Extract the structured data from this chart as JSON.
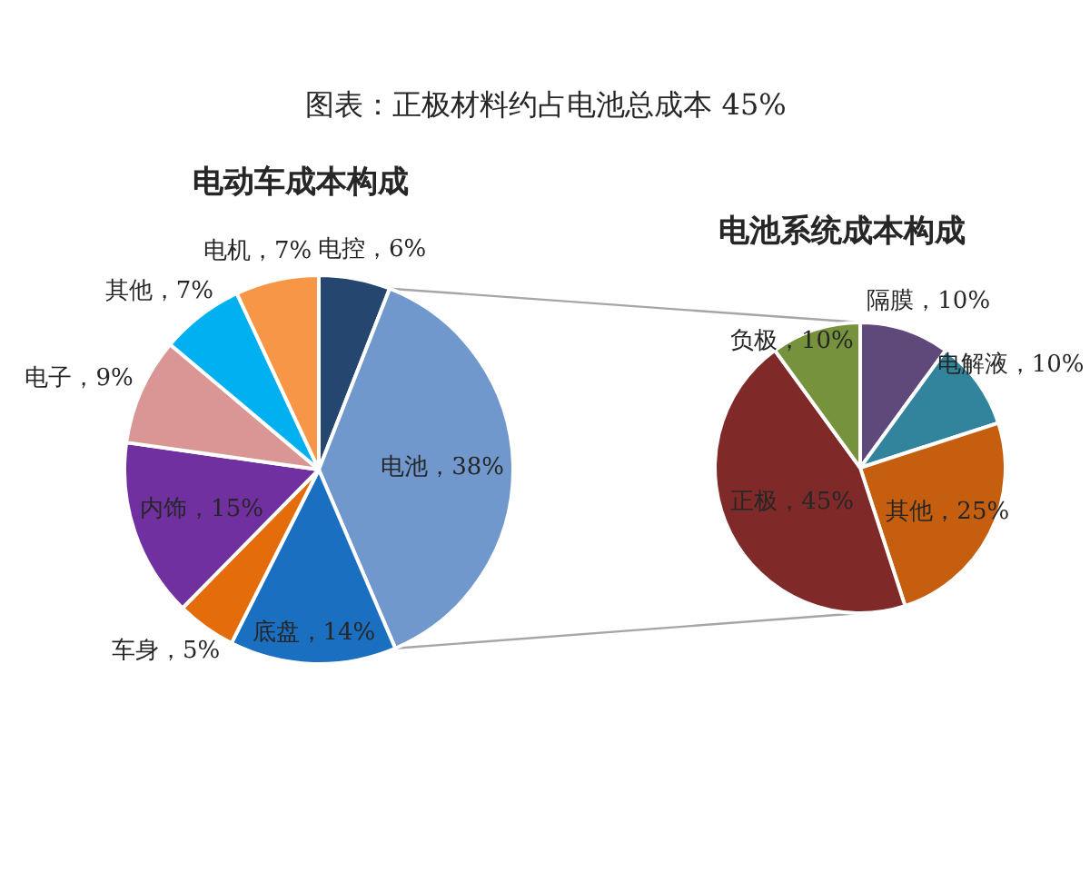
{
  "chart_data": [
    {
      "type": "pie",
      "title": "图表：正极材料约占电池总成本 45%",
      "subtitle": "电动车成本构成",
      "categories": [
        "电控",
        "电池",
        "底盘",
        "车身",
        "内饰",
        "电子",
        "其他",
        "电机"
      ],
      "values": [
        6,
        38,
        14,
        5,
        15,
        9,
        7,
        7
      ],
      "value_labels": [
        "6%",
        "38%",
        "14%",
        "5%",
        "15%",
        "9%",
        "7%",
        "7%"
      ],
      "colors": [
        "#25466f",
        "#7198cd",
        "#1a6fc0",
        "#e46c0a",
        "#7030a0",
        "#d99694",
        "#00b0f0",
        "#f79646"
      ]
    },
    {
      "type": "pie",
      "title": "电池系统成本构成",
      "categories": [
        "隔膜",
        "电解液",
        "其他",
        "正极",
        "负极"
      ],
      "values": [
        10,
        10,
        25,
        45,
        10
      ],
      "value_labels": [
        "10%",
        "10%",
        "25%",
        "45%",
        "10%"
      ],
      "colors": [
        "#5f497a",
        "#31849b",
        "#c55e0e",
        "#7f2a29",
        "#76923c"
      ]
    }
  ]
}
